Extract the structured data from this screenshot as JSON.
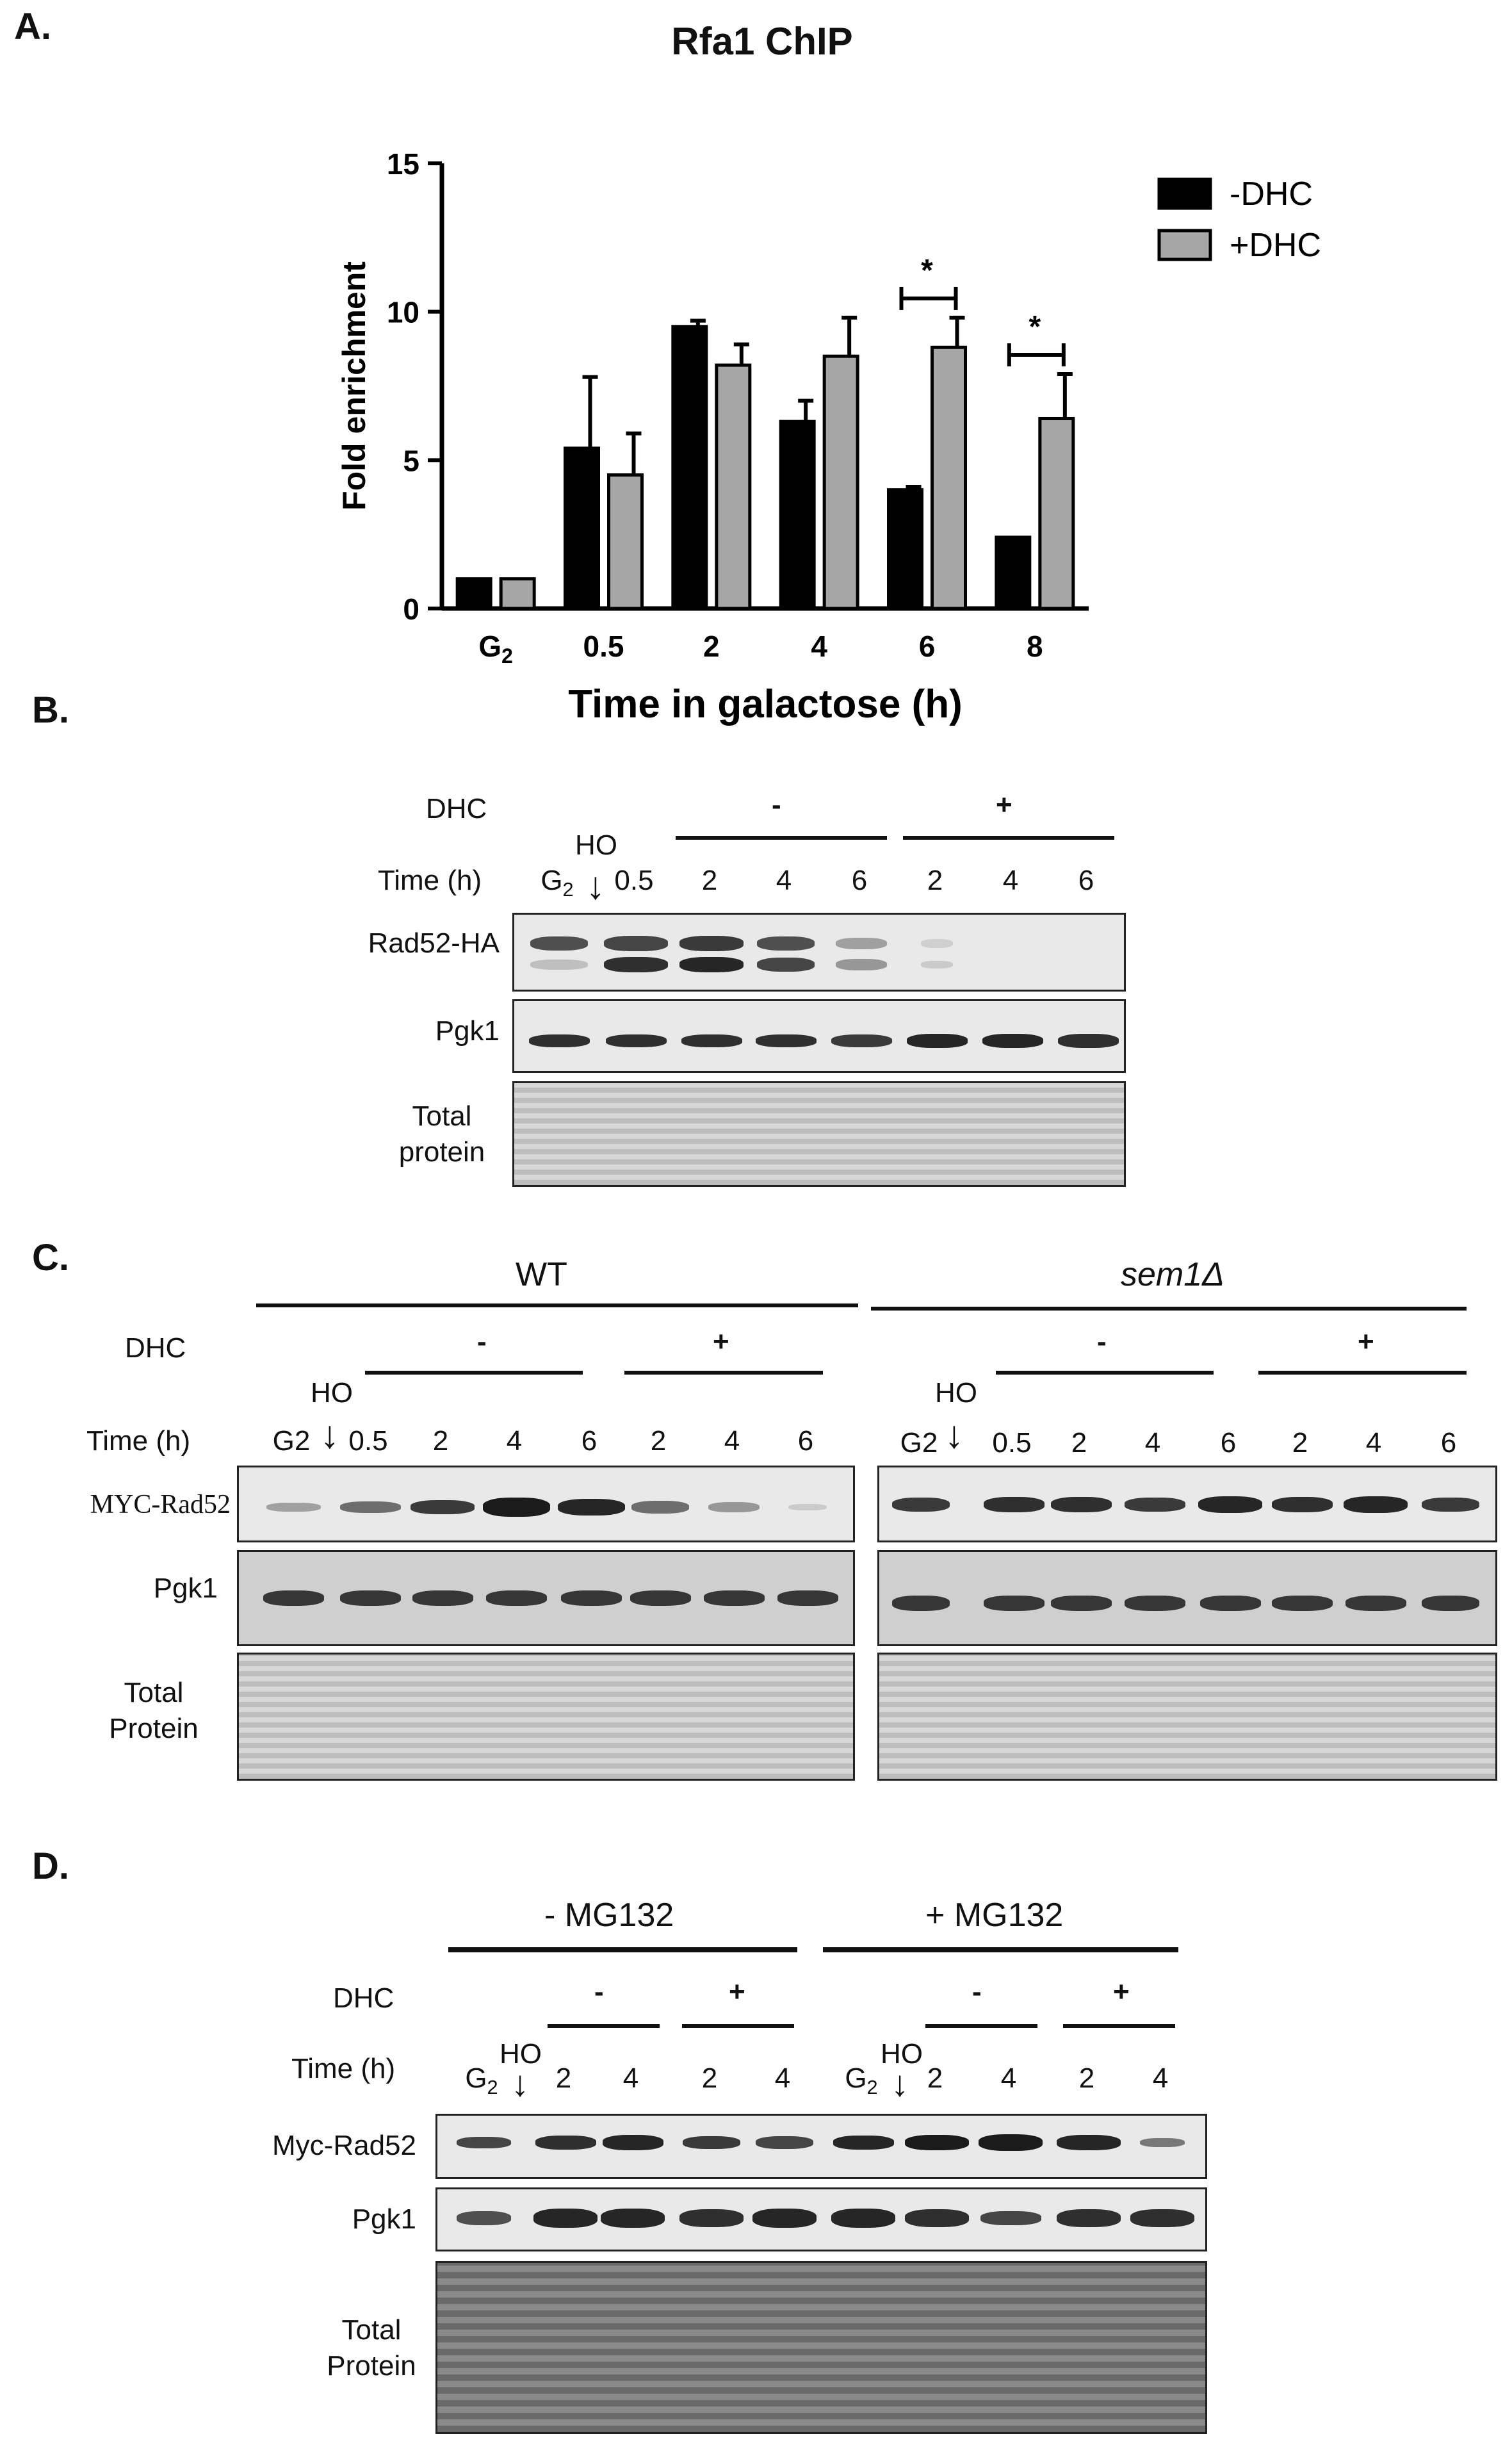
{
  "panelA": {
    "letter": "A.",
    "title": "Rfa1 ChIP",
    "chart_data": {
      "type": "bar",
      "categories": [
        "G2",
        "0.5",
        "2",
        "4",
        "6",
        "8"
      ],
      "series": [
        {
          "name": "-DHC",
          "color": "#000000",
          "values": [
            1.0,
            5.4,
            9.5,
            6.3,
            4.0,
            2.4
          ],
          "errors": [
            0,
            2.4,
            0.2,
            0.7,
            0.1,
            0
          ]
        },
        {
          "name": "+DHC",
          "color": "#a6a6a6",
          "values": [
            1.0,
            4.5,
            8.2,
            8.5,
            8.8,
            6.4
          ],
          "errors": [
            0,
            1.4,
            0.7,
            1.3,
            1.0,
            1.5
          ]
        }
      ],
      "xlabel": "Time in galactose (h)",
      "ylabel": "Fold enrichment",
      "ylim": [
        0,
        15
      ],
      "yticks": [
        0,
        5,
        10,
        15
      ],
      "significance": [
        {
          "category": "6",
          "mark": "*"
        },
        {
          "category": "8",
          "mark": "*"
        }
      ],
      "legend": "top-right"
    }
  },
  "panelB": {
    "letter": "B.",
    "dhc_label": "DHC",
    "minus": "-",
    "plus": "+",
    "time_label": "Time (h)",
    "ho": "HO",
    "lanes": [
      "G2",
      "0.5",
      "2",
      "4",
      "6",
      "2",
      "4",
      "6"
    ],
    "rows": [
      "Rad52-HA",
      "Pgk1",
      "Total protein"
    ]
  },
  "panelC": {
    "letter": "C.",
    "wt": "WT",
    "sem1": "sem1Δ",
    "dhc_label": "DHC",
    "minus": "-",
    "plus": "+",
    "time_label": "Time (h)",
    "ho": "HO",
    "lanes": [
      "G2",
      "0.5",
      "2",
      "4",
      "6",
      "2",
      "4",
      "6"
    ],
    "rows": [
      "MYC-Rad52",
      "Pgk1",
      "Total Protein"
    ]
  },
  "panelD": {
    "letter": "D.",
    "minus_mg": "- MG132",
    "plus_mg": "+ MG132",
    "dhc_label": "DHC",
    "minus": "-",
    "plus": "+",
    "time_label": "Time (h)",
    "ho": "HO",
    "lanes": [
      "G2",
      "2",
      "4",
      "2",
      "4"
    ],
    "rows": [
      "Myc-Rad52",
      "Pgk1",
      "Total Protein"
    ]
  }
}
